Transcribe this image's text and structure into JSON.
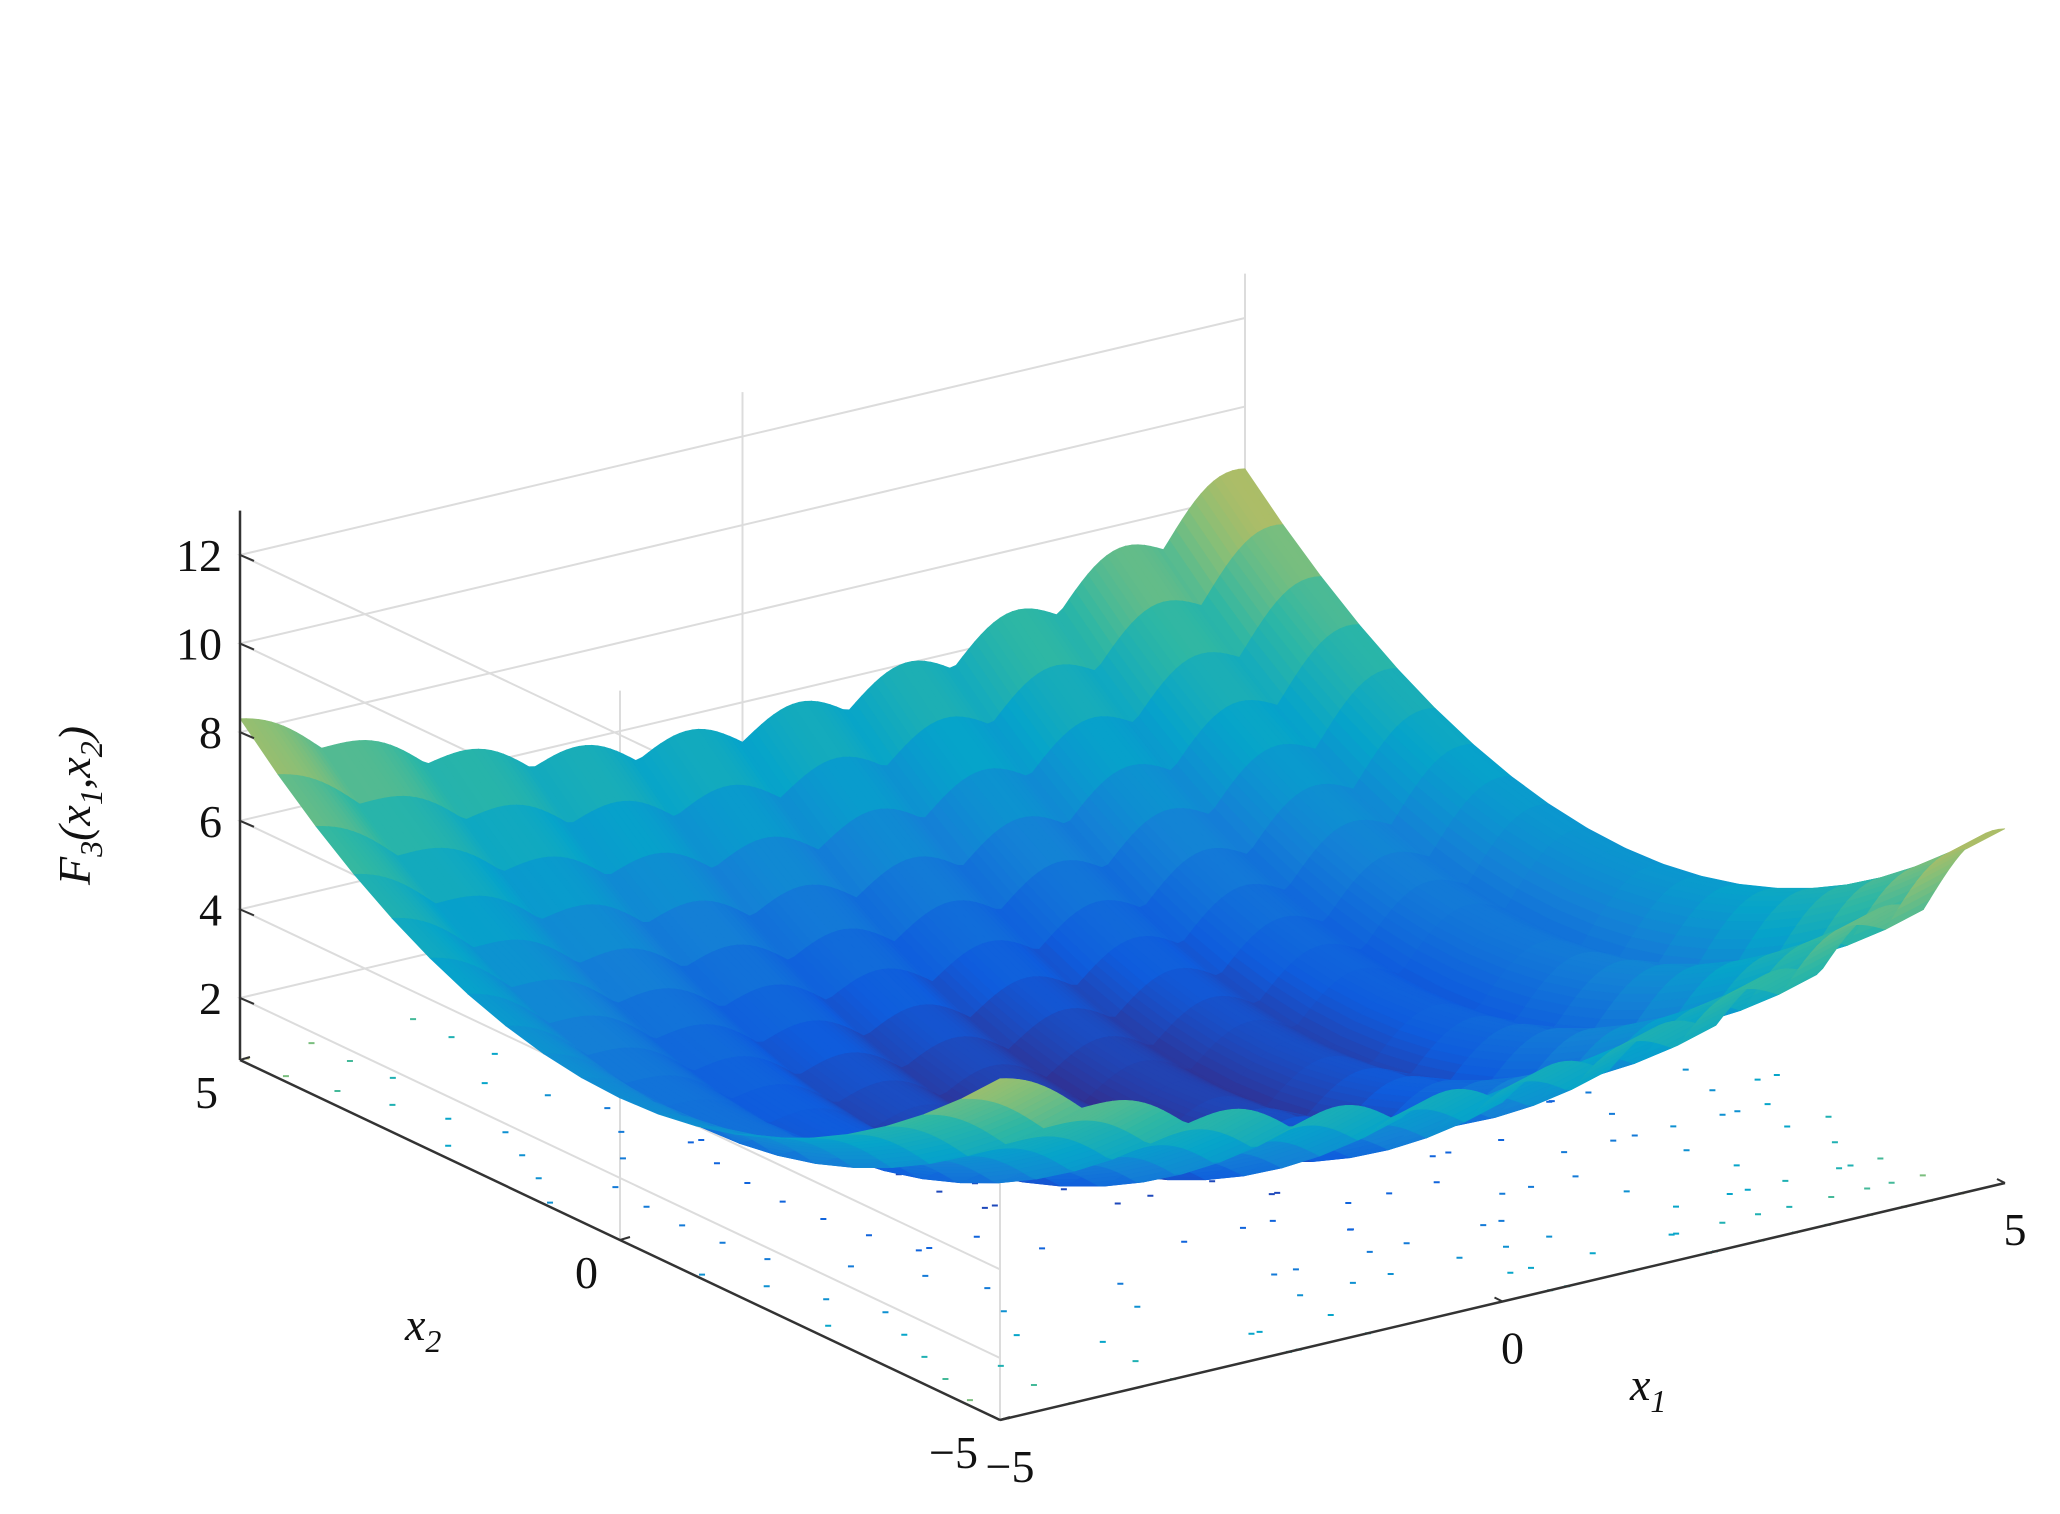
{
  "chart_data": {
    "type": "surface",
    "xlabel": {
      "base": "x",
      "sub": "1"
    },
    "ylabel": {
      "base": "x",
      "sub": "2"
    },
    "zlabel": {
      "fn": "F",
      "fn_sub": "3",
      "open": "(",
      "a": "x",
      "a_sub": "1",
      "sep": ",",
      "b": "x",
      "b_sub": "2",
      "close": ")"
    },
    "x_range": [
      -5,
      5
    ],
    "y_range": [
      -5,
      5
    ],
    "z_range": [
      0,
      13
    ],
    "x_ticks": [
      {
        "value": -5,
        "label": "−5"
      },
      {
        "value": 0,
        "label": "0"
      },
      {
        "value": 5,
        "label": "5"
      }
    ],
    "y_ticks": [
      {
        "value": -5,
        "label": "−5"
      },
      {
        "value": 0,
        "label": "0"
      },
      {
        "value": 5,
        "label": "5"
      }
    ],
    "z_ticks": [
      {
        "value": 2,
        "label": "2"
      },
      {
        "value": 4,
        "label": "4"
      },
      {
        "value": 6,
        "label": "6"
      },
      {
        "value": 8,
        "label": "8"
      },
      {
        "value": 10,
        "label": "10"
      },
      {
        "value": 12,
        "label": "12"
      }
    ],
    "grid": true,
    "colormap": "parula",
    "contour_projection": true,
    "surface": {
      "description": "bowl-shaped surface with rapid oscillations along x1",
      "x_samples": 161,
      "y_samples": 21,
      "z_min_approx": 0.5,
      "z_max_approx": 10
    }
  }
}
